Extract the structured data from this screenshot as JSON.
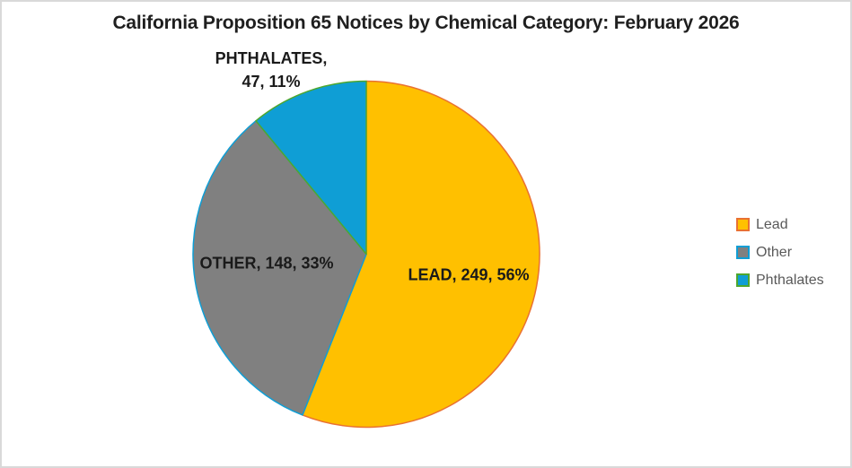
{
  "chart_data": {
    "type": "pie",
    "title": "California Proposition 65 Notices by Chemical Category: February 2026",
    "categories": [
      "Lead",
      "Other",
      "Phthalates"
    ],
    "values": [
      249,
      148,
      47
    ],
    "percents": [
      56,
      33,
      11
    ],
    "slice_labels": {
      "lead": "LEAD, 249, 56%",
      "other": "OTHER, 148, 33%",
      "phthalates_line1": "PHTHALATES,",
      "phthalates_line2": "47, 11%"
    },
    "colors": [
      "#FFC000",
      "#808080",
      "#0F9ED5"
    ],
    "border_colors": [
      "#E97132",
      "#0F9ED5",
      "#4EA72E"
    ],
    "start_angle_deg": 0,
    "direction": "clockwise",
    "grid": false,
    "legend_position": "right",
    "legend": [
      {
        "label": "Lead"
      },
      {
        "label": "Other"
      },
      {
        "label": "Phthalates"
      }
    ],
    "text_colors": {
      "title": "#1f1f1f",
      "data_labels": "#1a1a1a",
      "legend": "#595959"
    }
  }
}
